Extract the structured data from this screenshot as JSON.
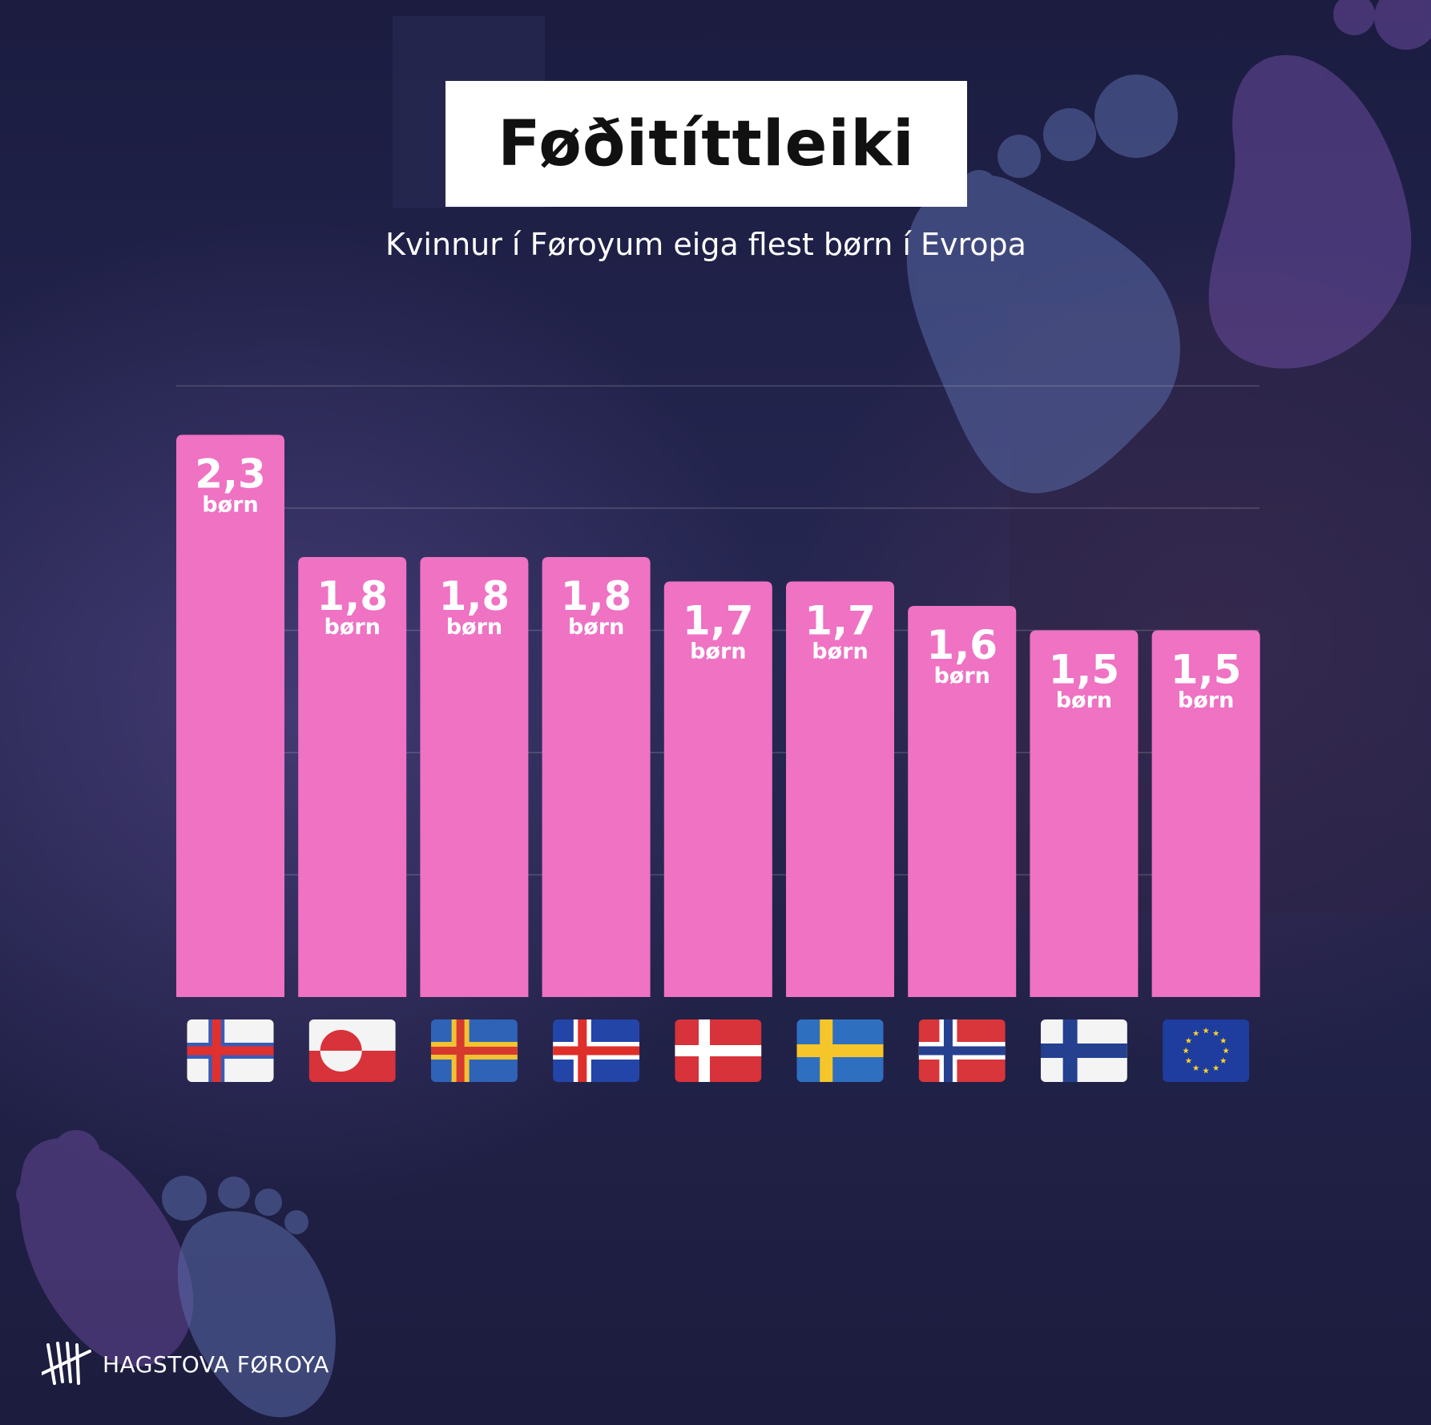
{
  "header": {
    "title": "Føðitíttleiki",
    "subtitle": "Kvinnur í Føroyum eiga flest børn í Evropa"
  },
  "brand": {
    "name": "HAGSTOVA FØROYA",
    "logo_icon": "tally-marks-logo"
  },
  "colors": {
    "background": "#1e1f48",
    "bar": "#ef72c3",
    "text": "#ffffff"
  },
  "chart_data": {
    "type": "bar",
    "title": "Føðitíttleiki",
    "subtitle": "Kvinnur í Føroyum eiga flest børn í Evropa",
    "unit_label": "børn",
    "categories": [
      "faroe-islands-flag",
      "greenland-flag",
      "aland-flag",
      "iceland-flag",
      "denmark-flag",
      "sweden-flag",
      "norway-flag",
      "finland-flag",
      "eu-flag"
    ],
    "values": [
      2.3,
      1.8,
      1.8,
      1.8,
      1.7,
      1.7,
      1.6,
      1.5,
      1.5
    ],
    "labels": [
      "2,3",
      "1,8",
      "1,8",
      "1,8",
      "1,7",
      "1,7",
      "1,6",
      "1,5",
      "1,5"
    ],
    "ylim": [
      0,
      2.5
    ],
    "grid": true,
    "axis_labels_visible": false,
    "bar_color": "#ef72c3"
  }
}
